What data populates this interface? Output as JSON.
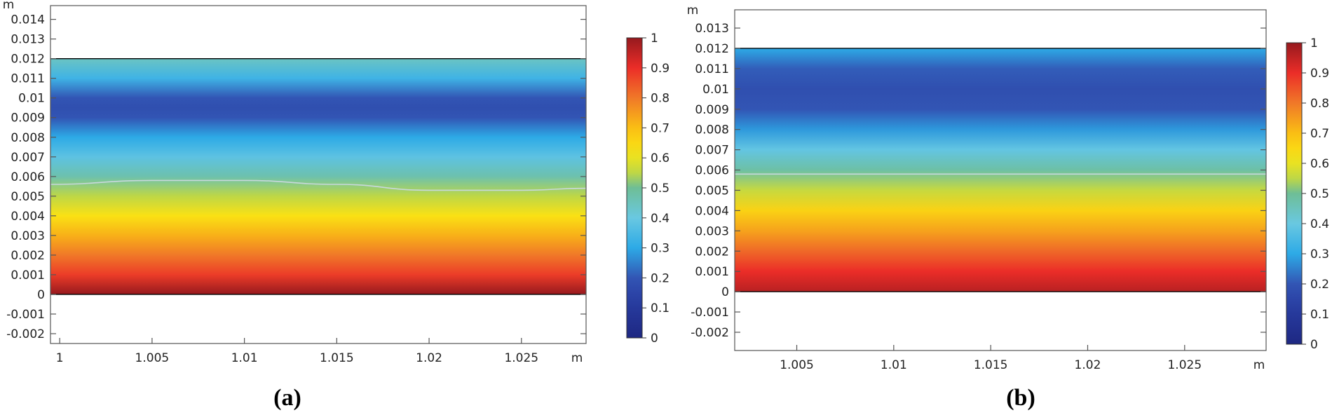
{
  "chart_data": [
    {
      "type": "heatmap",
      "panel_label": "(a)",
      "x_unit": "m",
      "y_unit": "m",
      "xlim": [
        0.9995,
        1.0285
      ],
      "ylim": [
        -0.0025,
        0.0147
      ],
      "x_ticks": [
        {
          "value": 1.0,
          "label": "1"
        },
        {
          "value": 1.005,
          "label": "1.005"
        },
        {
          "value": 1.01,
          "label": "1.01"
        },
        {
          "value": 1.015,
          "label": "1.015"
        },
        {
          "value": 1.02,
          "label": "1.02"
        },
        {
          "value": 1.025,
          "label": "1.025"
        }
      ],
      "y_ticks": [
        {
          "value": -0.002,
          "label": "-0.002"
        },
        {
          "value": -0.001,
          "label": "-0.001"
        },
        {
          "value": 0,
          "label": "0"
        },
        {
          "value": 0.001,
          "label": "0.001"
        },
        {
          "value": 0.002,
          "label": "0.002"
        },
        {
          "value": 0.003,
          "label": "0.003"
        },
        {
          "value": 0.004,
          "label": "0.004"
        },
        {
          "value": 0.005,
          "label": "0.005"
        },
        {
          "value": 0.006,
          "label": "0.006"
        },
        {
          "value": 0.007,
          "label": "0.007"
        },
        {
          "value": 0.008,
          "label": "0.008"
        },
        {
          "value": 0.009,
          "label": "0.009"
        },
        {
          "value": 0.01,
          "label": "0.01"
        },
        {
          "value": 0.011,
          "label": "0.011"
        },
        {
          "value": 0.012,
          "label": "0.012"
        },
        {
          "value": 0.013,
          "label": "0.013"
        },
        {
          "value": 0.014,
          "label": "0.014"
        }
      ],
      "domain": {
        "x": [
          0.9995,
          1.0285
        ],
        "y": [
          0,
          0.012
        ]
      },
      "field_profile_vs_y": [
        {
          "y": 0.0,
          "value": 1.0
        },
        {
          "y": 0.001,
          "value": 0.88
        },
        {
          "y": 0.002,
          "value": 0.8
        },
        {
          "y": 0.003,
          "value": 0.72
        },
        {
          "y": 0.004,
          "value": 0.63
        },
        {
          "y": 0.005,
          "value": 0.55
        },
        {
          "y": 0.006,
          "value": 0.47
        },
        {
          "y": 0.007,
          "value": 0.38
        },
        {
          "y": 0.008,
          "value": 0.3
        },
        {
          "y": 0.009,
          "value": 0.2
        },
        {
          "y": 0.0095,
          "value": 0.18
        },
        {
          "y": 0.01,
          "value": 0.2
        },
        {
          "y": 0.011,
          "value": 0.33
        },
        {
          "y": 0.012,
          "value": 0.44
        }
      ],
      "contour": {
        "value": 0.5,
        "points": [
          {
            "x": 0.9995,
            "y": 0.0056
          },
          {
            "x": 1.005,
            "y": 0.0058
          },
          {
            "x": 1.01,
            "y": 0.0058
          },
          {
            "x": 1.015,
            "y": 0.0056
          },
          {
            "x": 1.02,
            "y": 0.0053
          },
          {
            "x": 1.025,
            "y": 0.0053
          },
          {
            "x": 1.0285,
            "y": 0.0054
          }
        ]
      },
      "colorbar": {
        "min": 0,
        "max": 1,
        "ticks": [
          "0",
          "0.1",
          "0.2",
          "0.3",
          "0.4",
          "0.5",
          "0.6",
          "0.7",
          "0.8",
          "0.9",
          "1"
        ]
      }
    },
    {
      "type": "heatmap",
      "panel_label": "(b)",
      "x_unit": "m",
      "y_unit": "m",
      "xlim": [
        1.0018,
        1.0292
      ],
      "ylim": [
        -0.0029,
        0.0139
      ],
      "x_ticks": [
        {
          "value": 1.005,
          "label": "1.005"
        },
        {
          "value": 1.01,
          "label": "1.01"
        },
        {
          "value": 1.015,
          "label": "1.015"
        },
        {
          "value": 1.02,
          "label": "1.02"
        },
        {
          "value": 1.025,
          "label": "1.025"
        }
      ],
      "y_ticks": [
        {
          "value": -0.002,
          "label": "-0.002"
        },
        {
          "value": -0.001,
          "label": "-0.001"
        },
        {
          "value": 0,
          "label": "0"
        },
        {
          "value": 0.001,
          "label": "0.001"
        },
        {
          "value": 0.002,
          "label": "0.002"
        },
        {
          "value": 0.003,
          "label": "0.003"
        },
        {
          "value": 0.004,
          "label": "0.004"
        },
        {
          "value": 0.005,
          "label": "0.005"
        },
        {
          "value": 0.006,
          "label": "0.006"
        },
        {
          "value": 0.007,
          "label": "0.007"
        },
        {
          "value": 0.008,
          "label": "0.008"
        },
        {
          "value": 0.009,
          "label": "0.009"
        },
        {
          "value": 0.01,
          "label": "0.01"
        },
        {
          "value": 0.011,
          "label": "0.011"
        },
        {
          "value": 0.012,
          "label": "0.012"
        },
        {
          "value": 0.013,
          "label": "0.013"
        }
      ],
      "domain": {
        "x": [
          1.0018,
          1.0292
        ],
        "y": [
          0,
          0.012
        ]
      },
      "field_profile_vs_y": [
        {
          "y": 0.0,
          "value": 0.96
        },
        {
          "y": 0.001,
          "value": 0.9
        },
        {
          "y": 0.002,
          "value": 0.82
        },
        {
          "y": 0.003,
          "value": 0.74
        },
        {
          "y": 0.004,
          "value": 0.66
        },
        {
          "y": 0.005,
          "value": 0.56
        },
        {
          "y": 0.006,
          "value": 0.48
        },
        {
          "y": 0.007,
          "value": 0.39
        },
        {
          "y": 0.008,
          "value": 0.28
        },
        {
          "y": 0.009,
          "value": 0.2
        },
        {
          "y": 0.01,
          "value": 0.18
        },
        {
          "y": 0.011,
          "value": 0.21
        },
        {
          "y": 0.012,
          "value": 0.3
        }
      ],
      "contour": {
        "value": 0.5,
        "points": [
          {
            "x": 1.0018,
            "y": 0.0058
          },
          {
            "x": 1.01,
            "y": 0.0058
          },
          {
            "x": 1.02,
            "y": 0.0058
          },
          {
            "x": 1.0292,
            "y": 0.0058
          }
        ]
      },
      "colorbar": {
        "min": 0,
        "max": 1,
        "ticks": [
          "0",
          "0.1",
          "0.2",
          "0.3",
          "0.4",
          "0.5",
          "0.6",
          "0.7",
          "0.8",
          "0.9",
          "1"
        ]
      }
    }
  ]
}
